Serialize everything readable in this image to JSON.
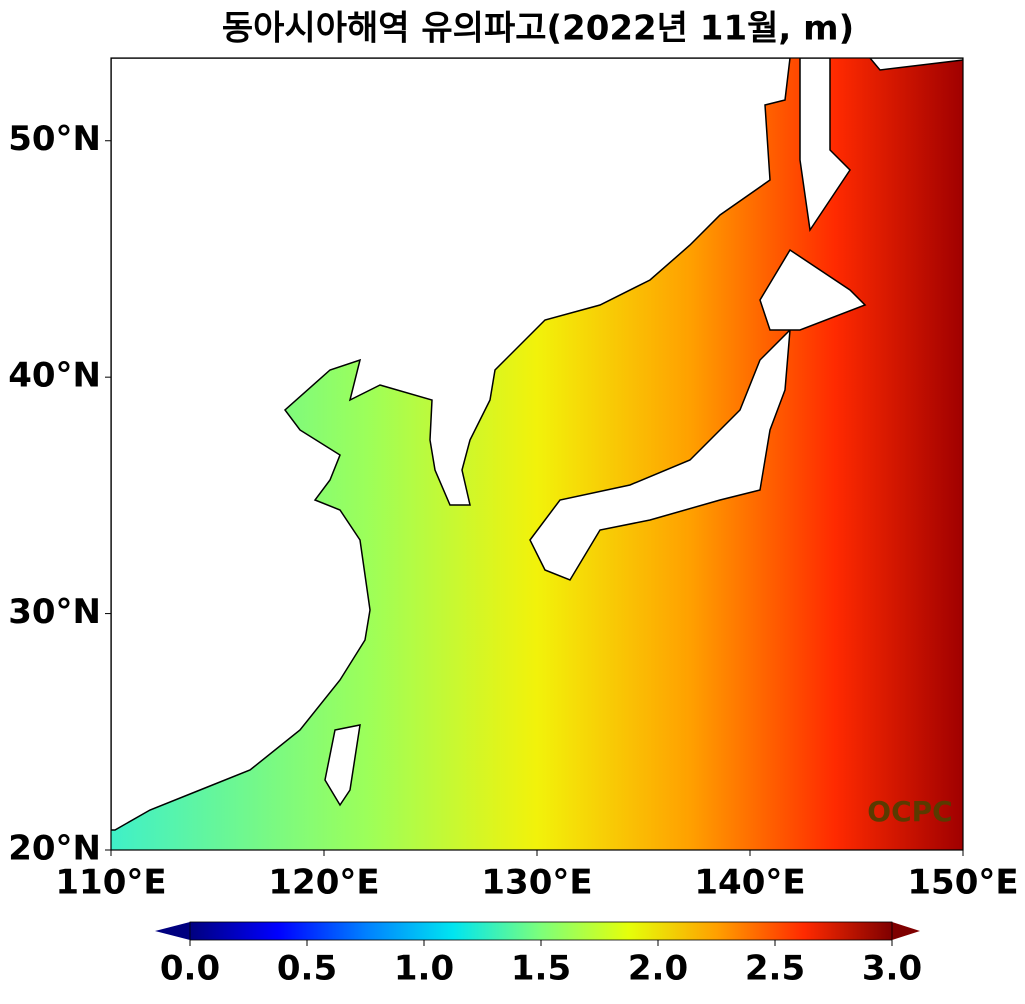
{
  "chart_data": {
    "type": "map",
    "title": "동아시아해역 유의파고(2022년 11월, m)",
    "xlim": [
      110,
      150
    ],
    "ylim": [
      20,
      53.5
    ],
    "xticks": [
      {
        "value": 110,
        "label": "110°E"
      },
      {
        "value": 120,
        "label": "120°E"
      },
      {
        "value": 130,
        "label": "130°E"
      },
      {
        "value": 140,
        "label": "140°E"
      },
      {
        "value": 150,
        "label": "150°E"
      }
    ],
    "yticks": [
      {
        "value": 20,
        "label": "20°N"
      },
      {
        "value": 30,
        "label": "30°N"
      },
      {
        "value": 40,
        "label": "40°N"
      },
      {
        "value": 50,
        "label": "50°N"
      }
    ],
    "colorbar": {
      "lim": [
        0,
        3
      ],
      "ticks": [
        {
          "value": 0,
          "label": "0.0"
        },
        0.5,
        {
          "value": 1,
          "label": "1.0"
        },
        1.5,
        {
          "value": 2,
          "label": "2.0"
        },
        2.5,
        {
          "value": 3,
          "label": "3.0"
        }
      ],
      "colors": [
        "#00007f",
        "#0000ff",
        "#0080ff",
        "#00e5f0",
        "#7dff7a",
        "#e5ff0a",
        "#ffa000",
        "#ff2a00",
        "#7f0000"
      ]
    },
    "watermark": "OCPC"
  }
}
